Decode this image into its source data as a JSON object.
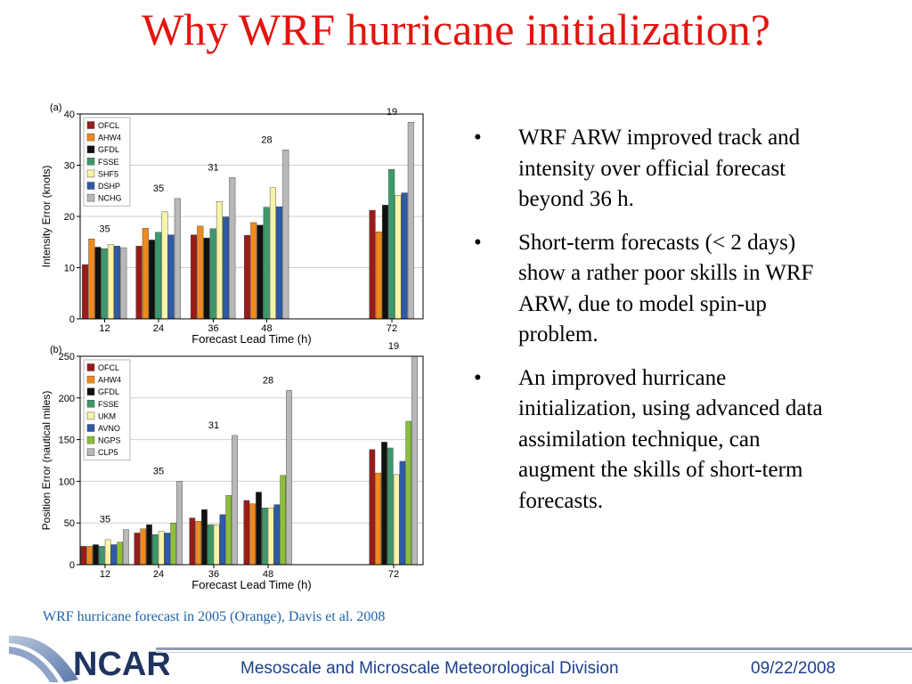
{
  "slide": {
    "title": "Why WRF hurricane initialization?",
    "bullets": [
      "WRF ARW improved track and intensity over official forecast beyond 36 h.",
      "Short-term forecasts (< 2 days) show a rather poor skills in WRF ARW, due to model spin-up problem.",
      "An improved hurricane initialization, using advanced data assimilation technique, can augment the skills of short-term forecasts."
    ],
    "bullet_symbol": "•",
    "caption": "WRF hurricane forecast in 2005 (Orange), Davis et al. 2008",
    "footer": {
      "logo_text": "NCAR",
      "division": "Mesoscale and Microscale Meteorological Division",
      "date": "09/22/2008"
    }
  },
  "chart_data": [
    {
      "type": "bar",
      "panel_label": "(a)",
      "xlabel": "Forecast Lead Time (h)",
      "ylabel": "Intensity Error (knots)",
      "ylim": [
        0,
        40
      ],
      "yticks": [
        0,
        10,
        20,
        30,
        40
      ],
      "categories": [
        "12",
        "24",
        "36",
        "48",
        "72"
      ],
      "counts": [
        "35",
        "35",
        "31",
        "28",
        "19"
      ],
      "legend_position": "top-left",
      "series": [
        {
          "name": "OFCL",
          "color": "#9b1b1b",
          "values": [
            10.6,
            14.2,
            16.4,
            16.3,
            21.2
          ]
        },
        {
          "name": "AHW4",
          "color": "#f08a1c",
          "values": [
            15.6,
            17.7,
            18.1,
            18.8,
            17.0
          ]
        },
        {
          "name": "GFDL",
          "color": "#111111",
          "values": [
            14.0,
            15.4,
            15.8,
            18.3,
            22.2
          ]
        },
        {
          "name": "FSSE",
          "color": "#3c9a6a",
          "values": [
            13.7,
            16.9,
            17.6,
            21.8,
            29.2
          ]
        },
        {
          "name": "SHF5",
          "color": "#f7f4a8",
          "values": [
            14.5,
            20.9,
            22.9,
            25.6,
            24.1
          ]
        },
        {
          "name": "DSHP",
          "color": "#2e5aa6",
          "values": [
            14.2,
            16.4,
            19.9,
            21.9,
            24.6
          ]
        },
        {
          "name": "NCHG",
          "color": "#b8b8b8",
          "values": [
            13.9,
            23.5,
            27.6,
            33.0,
            38.4
          ]
        }
      ]
    },
    {
      "type": "bar",
      "panel_label": "(b)",
      "xlabel": "Forecast Lead Time (h)",
      "ylabel": "Position Error (nautical miles)",
      "ylim": [
        0,
        250
      ],
      "yticks": [
        0,
        50,
        100,
        150,
        200,
        250
      ],
      "categories": [
        "12",
        "24",
        "36",
        "48",
        "72"
      ],
      "counts": [
        "35",
        "35",
        "31",
        "28",
        "19"
      ],
      "legend_position": "top-left",
      "series": [
        {
          "name": "OFCL",
          "color": "#9b1b1b",
          "values": [
            22,
            38,
            56,
            77,
            138
          ]
        },
        {
          "name": "AHW4",
          "color": "#f08a1c",
          "values": [
            22,
            43,
            52,
            73,
            110
          ]
        },
        {
          "name": "GFDL",
          "color": "#111111",
          "values": [
            24,
            48,
            66,
            87,
            147
          ]
        },
        {
          "name": "FSSE",
          "color": "#3c9a6a",
          "values": [
            22,
            36,
            48,
            68,
            140
          ]
        },
        {
          "name": "UKM",
          "color": "#f7f4a8",
          "values": [
            30,
            40,
            48,
            68,
            108
          ]
        },
        {
          "name": "AVNO",
          "color": "#2e5aa6",
          "values": [
            24,
            38,
            60,
            72,
            124
          ]
        },
        {
          "name": "NGPS",
          "color": "#8cbf3a",
          "values": [
            27,
            50,
            83,
            107,
            172
          ]
        },
        {
          "name": "CLP5",
          "color": "#b8b8b8",
          "values": [
            42,
            100,
            155,
            209,
            252
          ]
        }
      ]
    }
  ]
}
